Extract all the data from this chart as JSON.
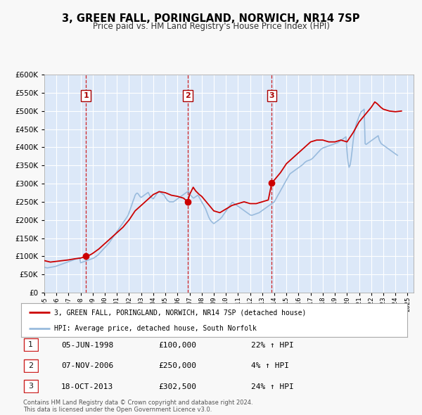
{
  "title": "3, GREEN FALL, PORINGLAND, NORWICH, NR14 7SP",
  "subtitle": "Price paid vs. HM Land Registry's House Price Index (HPI)",
  "ylim": [
    0,
    600000
  ],
  "yticks": [
    0,
    50000,
    100000,
    150000,
    200000,
    250000,
    300000,
    350000,
    400000,
    450000,
    500000,
    550000,
    600000
  ],
  "xlim_start": 1995.0,
  "xlim_end": 2025.5,
  "plot_bg_color": "#dce8f8",
  "grid_color": "#ffffff",
  "red_line_color": "#cc0000",
  "blue_line_color": "#99bbdd",
  "sale_marker_color": "#cc0000",
  "vline_color": "#cc0000",
  "legend_label_red": "3, GREEN FALL, PORINGLAND, NORWICH, NR14 7SP (detached house)",
  "legend_label_blue": "HPI: Average price, detached house, South Norfolk",
  "sales": [
    {
      "num": 1,
      "date_x": 1998.44,
      "price": 100000,
      "date_str": "05-JUN-1998",
      "pct": "22%",
      "dir": "↑"
    },
    {
      "num": 2,
      "date_x": 2006.85,
      "price": 250000,
      "date_str": "07-NOV-2006",
      "pct": "4%",
      "dir": "↑"
    },
    {
      "num": 3,
      "date_x": 2013.79,
      "price": 302500,
      "date_str": "18-OCT-2013",
      "pct": "24%",
      "dir": "↑"
    }
  ],
  "footer": "Contains HM Land Registry data © Crown copyright and database right 2024.\nThis data is licensed under the Open Government Licence v3.0.",
  "hpi_years": [
    1995.0,
    1995.08,
    1995.17,
    1995.25,
    1995.33,
    1995.42,
    1995.5,
    1995.58,
    1995.67,
    1995.75,
    1995.83,
    1995.92,
    1996.0,
    1996.08,
    1996.17,
    1996.25,
    1996.33,
    1996.42,
    1996.5,
    1996.58,
    1996.67,
    1996.75,
    1996.83,
    1996.92,
    1997.0,
    1997.08,
    1997.17,
    1997.25,
    1997.33,
    1997.42,
    1997.5,
    1997.58,
    1997.67,
    1997.75,
    1997.83,
    1997.92,
    1998.0,
    1998.08,
    1998.17,
    1998.25,
    1998.33,
    1998.42,
    1998.5,
    1998.58,
    1998.67,
    1998.75,
    1998.83,
    1998.92,
    1999.0,
    1999.08,
    1999.17,
    1999.25,
    1999.33,
    1999.42,
    1999.5,
    1999.58,
    1999.67,
    1999.75,
    1999.83,
    1999.92,
    2000.0,
    2000.08,
    2000.17,
    2000.25,
    2000.33,
    2000.42,
    2000.5,
    2000.58,
    2000.67,
    2000.75,
    2000.83,
    2000.92,
    2001.0,
    2001.08,
    2001.17,
    2001.25,
    2001.33,
    2001.42,
    2001.5,
    2001.58,
    2001.67,
    2001.75,
    2001.83,
    2001.92,
    2002.0,
    2002.08,
    2002.17,
    2002.25,
    2002.33,
    2002.42,
    2002.5,
    2002.58,
    2002.67,
    2002.75,
    2002.83,
    2002.92,
    2003.0,
    2003.08,
    2003.17,
    2003.25,
    2003.33,
    2003.42,
    2003.5,
    2003.58,
    2003.67,
    2003.75,
    2003.83,
    2003.92,
    2004.0,
    2004.08,
    2004.17,
    2004.25,
    2004.33,
    2004.42,
    2004.5,
    2004.58,
    2004.67,
    2004.75,
    2004.83,
    2004.92,
    2005.0,
    2005.08,
    2005.17,
    2005.25,
    2005.33,
    2005.42,
    2005.5,
    2005.58,
    2005.67,
    2005.75,
    2005.83,
    2005.92,
    2006.0,
    2006.08,
    2006.17,
    2006.25,
    2006.33,
    2006.42,
    2006.5,
    2006.58,
    2006.67,
    2006.75,
    2006.83,
    2006.92,
    2007.0,
    2007.08,
    2007.17,
    2007.25,
    2007.33,
    2007.42,
    2007.5,
    2007.58,
    2007.67,
    2007.75,
    2007.83,
    2007.92,
    2008.0,
    2008.08,
    2008.17,
    2008.25,
    2008.33,
    2008.42,
    2008.5,
    2008.58,
    2008.67,
    2008.75,
    2008.83,
    2008.92,
    2009.0,
    2009.08,
    2009.17,
    2009.25,
    2009.33,
    2009.42,
    2009.5,
    2009.58,
    2009.67,
    2009.75,
    2009.83,
    2009.92,
    2010.0,
    2010.08,
    2010.17,
    2010.25,
    2010.33,
    2010.42,
    2010.5,
    2010.58,
    2010.67,
    2010.75,
    2010.83,
    2010.92,
    2011.0,
    2011.08,
    2011.17,
    2011.25,
    2011.33,
    2011.42,
    2011.5,
    2011.58,
    2011.67,
    2011.75,
    2011.83,
    2011.92,
    2012.0,
    2012.08,
    2012.17,
    2012.25,
    2012.33,
    2012.42,
    2012.5,
    2012.58,
    2012.67,
    2012.75,
    2012.83,
    2012.92,
    2013.0,
    2013.08,
    2013.17,
    2013.25,
    2013.33,
    2013.42,
    2013.5,
    2013.58,
    2013.67,
    2013.75,
    2013.83,
    2013.92,
    2014.0,
    2014.08,
    2014.17,
    2014.25,
    2014.33,
    2014.42,
    2014.5,
    2014.58,
    2014.67,
    2014.75,
    2014.83,
    2014.92,
    2015.0,
    2015.08,
    2015.17,
    2015.25,
    2015.33,
    2015.42,
    2015.5,
    2015.58,
    2015.67,
    2015.75,
    2015.83,
    2015.92,
    2016.0,
    2016.08,
    2016.17,
    2016.25,
    2016.33,
    2016.42,
    2016.5,
    2016.58,
    2016.67,
    2016.75,
    2016.83,
    2016.92,
    2017.0,
    2017.08,
    2017.17,
    2017.25,
    2017.33,
    2017.42,
    2017.5,
    2017.58,
    2017.67,
    2017.75,
    2017.83,
    2017.92,
    2018.0,
    2018.08,
    2018.17,
    2018.25,
    2018.33,
    2018.42,
    2018.5,
    2018.58,
    2018.67,
    2018.75,
    2018.83,
    2018.92,
    2019.0,
    2019.08,
    2019.17,
    2019.25,
    2019.33,
    2019.42,
    2019.5,
    2019.58,
    2019.67,
    2019.75,
    2019.83,
    2019.92,
    2020.0,
    2020.08,
    2020.17,
    2020.25,
    2020.33,
    2020.42,
    2020.5,
    2020.58,
    2020.67,
    2020.75,
    2020.83,
    2020.92,
    2021.0,
    2021.08,
    2021.17,
    2021.25,
    2021.33,
    2021.42,
    2021.5,
    2021.58,
    2021.67,
    2021.75,
    2021.83,
    2021.92,
    2022.0,
    2022.08,
    2022.17,
    2022.25,
    2022.33,
    2022.42,
    2022.5,
    2022.58,
    2022.67,
    2022.75,
    2022.83,
    2022.92,
    2023.0,
    2023.08,
    2023.17,
    2023.25,
    2023.33,
    2023.42,
    2023.5,
    2023.58,
    2023.67,
    2023.75,
    2023.83,
    2023.92,
    2024.0,
    2024.08,
    2024.17,
    2024.25,
    2024.33,
    2024.42,
    2024.5
  ],
  "hpi_values": [
    70000,
    69000,
    68500,
    68000,
    68500,
    69000,
    69500,
    70000,
    70500,
    71000,
    71500,
    72000,
    73000,
    74000,
    75000,
    76000,
    77000,
    78000,
    79000,
    80000,
    81000,
    82000,
    83000,
    84000,
    85000,
    86000,
    87000,
    88000,
    89000,
    90000,
    91000,
    92000,
    93000,
    94000,
    95000,
    96000,
    82000,
    83000,
    84000,
    85000,
    86000,
    87000,
    88000,
    89000,
    90000,
    91000,
    92000,
    93000,
    94000,
    95000,
    97000,
    99000,
    101000,
    103000,
    106000,
    109000,
    112000,
    115000,
    118000,
    121000,
    124000,
    127000,
    130000,
    133000,
    136000,
    140000,
    144000,
    148000,
    152000,
    156000,
    160000,
    164000,
    168000,
    172000,
    176000,
    180000,
    184000,
    188000,
    192000,
    196000,
    200000,
    204000,
    208000,
    213000,
    220000,
    228000,
    236000,
    244000,
    252000,
    260000,
    268000,
    272000,
    274000,
    272000,
    268000,
    264000,
    262000,
    264000,
    266000,
    268000,
    270000,
    272000,
    274000,
    276000,
    270000,
    265000,
    262000,
    260000,
    258000,
    262000,
    266000,
    270000,
    274000,
    278000,
    278000,
    276000,
    274000,
    272000,
    270000,
    268000,
    262000,
    258000,
    254000,
    252000,
    250000,
    250000,
    250000,
    250000,
    250000,
    252000,
    254000,
    256000,
    258000,
    260000,
    262000,
    264000,
    266000,
    268000,
    270000,
    272000,
    274000,
    276000,
    278000,
    280000,
    270000,
    268000,
    265000,
    262000,
    260000,
    262000,
    264000,
    266000,
    268000,
    265000,
    260000,
    255000,
    250000,
    245000,
    240000,
    235000,
    230000,
    222000,
    215000,
    208000,
    202000,
    198000,
    195000,
    192000,
    190000,
    192000,
    194000,
    196000,
    198000,
    200000,
    202000,
    205000,
    208000,
    212000,
    216000,
    220000,
    224000,
    228000,
    232000,
    236000,
    240000,
    244000,
    248000,
    248000,
    246000,
    244000,
    242000,
    240000,
    238000,
    236000,
    234000,
    232000,
    230000,
    228000,
    226000,
    224000,
    222000,
    220000,
    218000,
    216000,
    214000,
    213000,
    213000,
    214000,
    215000,
    216000,
    217000,
    218000,
    219000,
    220000,
    222000,
    224000,
    226000,
    228000,
    230000,
    232000,
    234000,
    236000,
    238000,
    240000,
    242000,
    244000,
    246000,
    248000,
    250000,
    255000,
    260000,
    265000,
    270000,
    275000,
    280000,
    285000,
    290000,
    295000,
    300000,
    305000,
    310000,
    315000,
    320000,
    325000,
    328000,
    330000,
    332000,
    334000,
    336000,
    338000,
    340000,
    342000,
    344000,
    346000,
    348000,
    350000,
    352000,
    355000,
    358000,
    360000,
    362000,
    363000,
    364000,
    365000,
    366000,
    368000,
    370000,
    373000,
    376000,
    379000,
    382000,
    385000,
    388000,
    391000,
    394000,
    396000,
    398000,
    399000,
    400000,
    401000,
    402000,
    403000,
    404000,
    405000,
    406000,
    407000,
    408000,
    409000,
    410000,
    411000,
    412000,
    413000,
    415000,
    417000,
    419000,
    421000,
    423000,
    425000,
    427000,
    429000,
    390000,
    360000,
    345000,
    350000,
    365000,
    390000,
    415000,
    435000,
    450000,
    462000,
    470000,
    478000,
    485000,
    492000,
    498000,
    500000,
    502000,
    505000,
    410000,
    408000,
    410000,
    412000,
    414000,
    416000,
    418000,
    420000,
    422000,
    424000,
    426000,
    428000,
    430000,
    432000,
    420000,
    415000,
    410000,
    408000,
    406000,
    404000,
    402000,
    400000,
    398000,
    396000,
    394000,
    392000,
    390000,
    388000,
    386000,
    384000,
    382000,
    380000,
    378000
  ],
  "red_years": [
    1995.0,
    1995.5,
    1996.0,
    1996.5,
    1997.0,
    1997.5,
    1998.0,
    1998.44,
    1998.8,
    1999.0,
    1999.5,
    2000.0,
    2000.5,
    2001.0,
    2001.5,
    2002.0,
    2002.5,
    2003.0,
    2003.5,
    2004.0,
    2004.5,
    2005.0,
    2005.5,
    2006.0,
    2006.5,
    2006.85,
    2007.0,
    2007.3,
    2007.5,
    2007.8,
    2008.0,
    2008.5,
    2009.0,
    2009.5,
    2010.0,
    2010.5,
    2011.0,
    2011.5,
    2012.0,
    2012.5,
    2013.0,
    2013.5,
    2013.79,
    2014.0,
    2014.5,
    2015.0,
    2015.5,
    2016.0,
    2016.5,
    2017.0,
    2017.5,
    2018.0,
    2018.5,
    2019.0,
    2019.5,
    2020.0,
    2020.5,
    2021.0,
    2021.5,
    2022.0,
    2022.3,
    2022.5,
    2022.8,
    2023.0,
    2023.5,
    2024.0,
    2024.5
  ],
  "red_values": [
    88000,
    84000,
    86000,
    88000,
    90000,
    93000,
    95000,
    100000,
    104000,
    108000,
    120000,
    135000,
    150000,
    165000,
    180000,
    200000,
    225000,
    240000,
    255000,
    270000,
    278000,
    275000,
    268000,
    265000,
    260000,
    250000,
    270000,
    290000,
    280000,
    270000,
    265000,
    245000,
    225000,
    220000,
    230000,
    240000,
    245000,
    250000,
    245000,
    245000,
    250000,
    255000,
    302500,
    310000,
    330000,
    355000,
    370000,
    385000,
    400000,
    415000,
    420000,
    420000,
    415000,
    415000,
    420000,
    415000,
    440000,
    470000,
    490000,
    510000,
    525000,
    520000,
    510000,
    505000,
    500000,
    498000,
    500000
  ]
}
